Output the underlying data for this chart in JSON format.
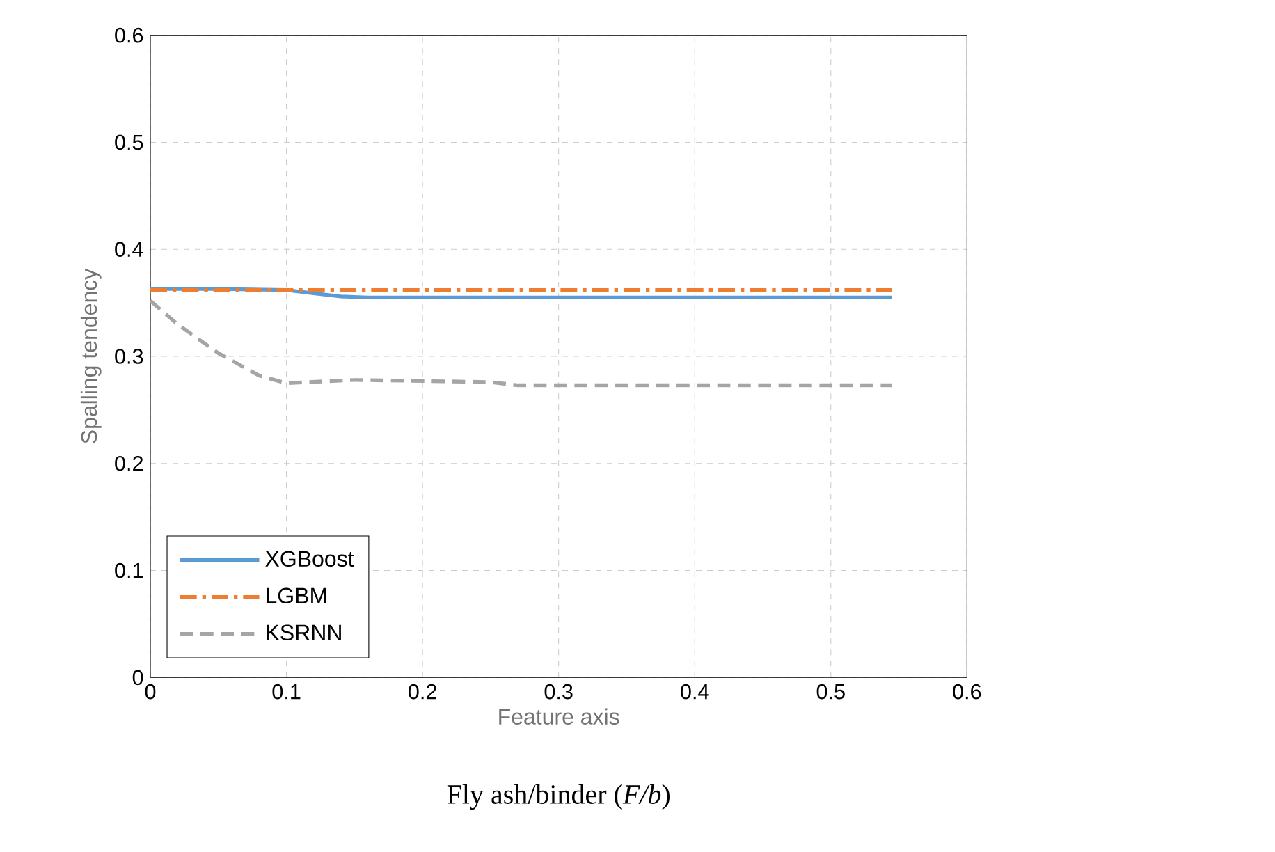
{
  "chart_data": {
    "type": "line",
    "xlabel": "Feature axis",
    "ylabel": "Spalling tendency",
    "annotations": [
      "Fly ash/binder (*F/b*)"
    ],
    "xlim": [
      0,
      0.6
    ],
    "ylim": [
      0,
      0.6
    ],
    "xticks": [
      0,
      0.1,
      0.2,
      0.3,
      0.4,
      0.5,
      0.6
    ],
    "yticks": [
      0,
      0.1,
      0.2,
      0.3,
      0.4,
      0.5,
      0.6
    ],
    "grid": true,
    "legend": "bottom left",
    "marker": "none",
    "series": [
      {
        "name": "XGBoost",
        "color": "#5b9bd5",
        "line_style": "solid",
        "x": [
          0,
          0.05,
          0.1,
          0.12,
          0.14,
          0.16,
          0.2,
          0.3,
          0.4,
          0.5,
          0.545
        ],
        "values": [
          0.363,
          0.363,
          0.362,
          0.359,
          0.356,
          0.355,
          0.355,
          0.355,
          0.355,
          0.355,
          0.355
        ]
      },
      {
        "name": "LGBM",
        "color": "#ed7d31",
        "line_style": "dashdot",
        "x": [
          0,
          0.1,
          0.2,
          0.3,
          0.4,
          0.5,
          0.545
        ],
        "values": [
          0.362,
          0.362,
          0.362,
          0.362,
          0.362,
          0.362,
          0.362
        ]
      },
      {
        "name": "KSRNN",
        "color": "#a5a5a5",
        "line_style": "dashed",
        "x": [
          0,
          0.02,
          0.05,
          0.08,
          0.1,
          0.15,
          0.2,
          0.25,
          0.27,
          0.3,
          0.4,
          0.5,
          0.545
        ],
        "values": [
          0.352,
          0.33,
          0.303,
          0.282,
          0.275,
          0.278,
          0.277,
          0.276,
          0.273,
          0.273,
          0.273,
          0.273,
          0.273
        ]
      }
    ]
  }
}
